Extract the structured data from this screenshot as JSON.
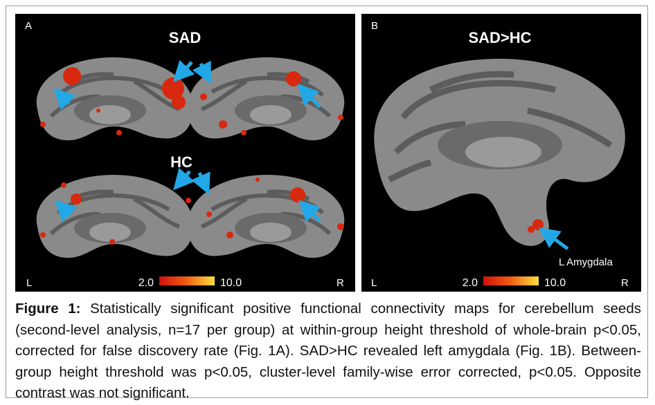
{
  "panels": [
    {
      "label": "A",
      "titles": [
        "SAD",
        "HC"
      ],
      "left": "L",
      "right": "R",
      "scale_min": "2.0",
      "scale_max": "10.0"
    },
    {
      "label": "B",
      "title": "SAD>HC",
      "annotation": "L Amygdala",
      "left": "L",
      "right": "R",
      "scale_min": "2.0",
      "scale_max": "10.0"
    }
  ],
  "caption": {
    "label": "Figure 1:",
    "text": "Statistically significant positive functional connectivity maps for cerebellum seeds (second-level analysis, n=17 per group) at within-group height threshold of whole-brain p<0.05, corrected for false discovery rate (Fig. 1A). SAD>HC revealed left amygdala (Fig. 1B). Between-group height threshold was p<0.05, cluster-level family-wise error corrected, p<0.05. Opposite contrast was not significant."
  }
}
